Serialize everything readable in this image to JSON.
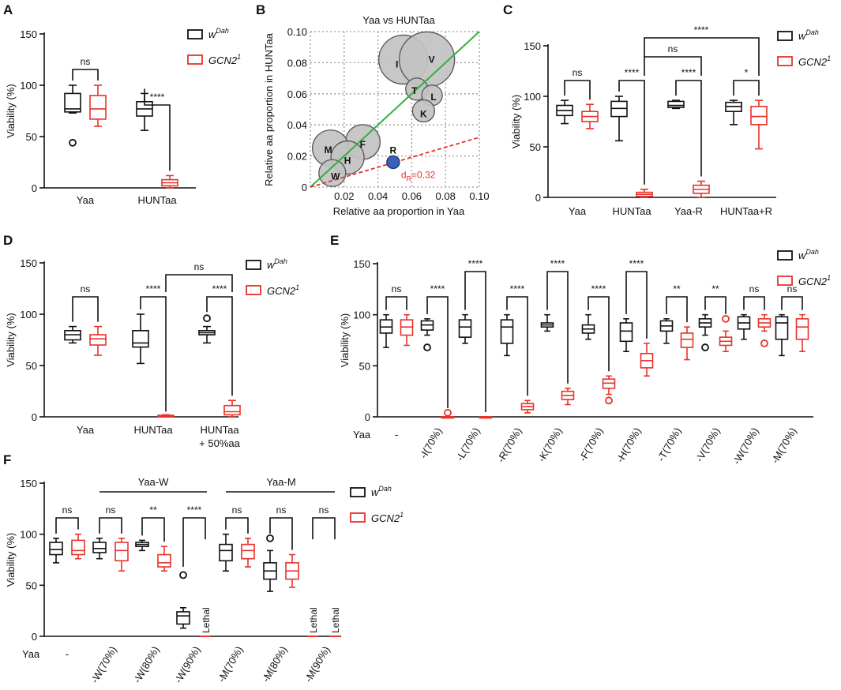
{
  "colors": {
    "wdah": "#111111",
    "gcn2": "#e8322a",
    "bubble_fill": "#c2c2c2",
    "bubble_stroke": "#555555",
    "diag_line": "#35b03b",
    "fit_line": "#e8322a",
    "R_fill": "#3a63b8"
  },
  "legend": {
    "wdah_main": "w",
    "wdah_sup": "Dah",
    "gcn2_main": "GCN2",
    "gcn2_sup": "1"
  },
  "panelA": {
    "letter": "A",
    "chart_data": {
      "type": "box",
      "ylabel": "Viability (%)",
      "ylim": [
        0,
        150
      ],
      "yticks": [
        "0",
        "50",
        "100",
        "150"
      ],
      "categories": [
        "Yaa",
        "HUNTaa"
      ],
      "groups": [
        {
          "label": "Yaa",
          "boxes": [
            {
              "series": "wDah",
              "min": 73,
              "q1": 74,
              "median": 77,
              "q3": 92,
              "max": 100,
              "outliers": [
                44
              ]
            },
            {
              "series": "GCN21",
              "min": 60,
              "q1": 67,
              "median": 77,
              "q3": 90,
              "max": 100,
              "outliers": []
            }
          ]
        },
        {
          "label": "HUNTaa",
          "boxes": [
            {
              "series": "wDah",
              "min": 56,
              "q1": 70,
              "median": 77,
              "q3": 84,
              "max": 92,
              "outliers": []
            },
            {
              "series": "GCN21",
              "min": 0,
              "q1": 2,
              "median": 5,
              "q3": 8,
              "max": 12,
              "outliers": []
            }
          ]
        }
      ],
      "brackets": [
        {
          "text": "ns"
        },
        {
          "text": "****"
        }
      ]
    }
  },
  "panelB": {
    "letter": "B",
    "chart_data": {
      "type": "scatter",
      "title": "Yaa vs HUNTaa",
      "xlabel": "Relative aa proportion in Yaa",
      "ylabel": "Relative aa proportion in HUNTaa",
      "xlim": [
        0,
        0.1
      ],
      "ylim": [
        0,
        0.1
      ],
      "xticks": [
        "0.02",
        "0.04",
        "0.06",
        "0.08",
        "0.10"
      ],
      "yticks": [
        "0",
        "0.02",
        "0.04",
        "0.06",
        "0.08",
        "0.10"
      ],
      "points": [
        {
          "label": "I",
          "x": 0.055,
          "y": 0.082
        },
        {
          "label": "V",
          "x": 0.069,
          "y": 0.082
        },
        {
          "label": "T",
          "x": 0.063,
          "y": 0.063
        },
        {
          "label": "L",
          "x": 0.072,
          "y": 0.059
        },
        {
          "label": "K",
          "x": 0.067,
          "y": 0.049
        },
        {
          "label": "F",
          "x": 0.031,
          "y": 0.029
        },
        {
          "label": "M",
          "x": 0.012,
          "y": 0.025
        },
        {
          "label": "H",
          "x": 0.022,
          "y": 0.019
        },
        {
          "label": "W",
          "x": 0.013,
          "y": 0.009
        },
        {
          "label": "R",
          "x": 0.049,
          "y": 0.016
        }
      ],
      "annotation_main": "d",
      "annotation_sub": "R",
      "annotation_value": "=0.32"
    }
  },
  "panelC": {
    "letter": "C",
    "chart_data": {
      "type": "box",
      "ylabel": "Viability (%)",
      "ylim": [
        0,
        150
      ],
      "yticks": [
        "0",
        "50",
        "100",
        "150"
      ],
      "categories": [
        "Yaa",
        "HUNTaa",
        "Yaa-R",
        "HUNTaa+R"
      ],
      "groups": [
        {
          "label": "Yaa",
          "boxes": [
            {
              "series": "wDah",
              "min": 73,
              "q1": 81,
              "median": 86,
              "q3": 91,
              "max": 96,
              "outliers": []
            },
            {
              "series": "GCN21",
              "min": 68,
              "q1": 75,
              "median": 80,
              "q3": 85,
              "max": 92,
              "outliers": []
            }
          ]
        },
        {
          "label": "HUNTaa",
          "boxes": [
            {
              "series": "wDah",
              "min": 56,
              "q1": 80,
              "median": 88,
              "q3": 95,
              "max": 100,
              "outliers": []
            },
            {
              "series": "GCN21",
              "min": 0,
              "q1": 1,
              "median": 3,
              "q3": 5,
              "max": 8,
              "outliers": []
            }
          ]
        },
        {
          "label": "Yaa-R",
          "boxes": [
            {
              "series": "wDah",
              "min": 88,
              "q1": 89,
              "median": 91,
              "q3": 95,
              "max": 96,
              "outliers": []
            },
            {
              "series": "GCN21",
              "min": 0,
              "q1": 4,
              "median": 8,
              "q3": 12,
              "max": 16,
              "outliers": []
            }
          ]
        },
        {
          "label": "HUNTaa+R",
          "boxes": [
            {
              "series": "wDah",
              "min": 72,
              "q1": 85,
              "median": 90,
              "q3": 94,
              "max": 96,
              "outliers": []
            },
            {
              "series": "GCN21",
              "min": 48,
              "q1": 72,
              "median": 80,
              "q3": 90,
              "max": 96,
              "outliers": []
            }
          ]
        }
      ],
      "brackets": [
        {
          "text": "ns"
        },
        {
          "text": "****"
        },
        {
          "text": "****"
        },
        {
          "text": "*"
        },
        {
          "text": "ns"
        },
        {
          "text": "****"
        }
      ]
    }
  },
  "panelD": {
    "letter": "D",
    "chart_data": {
      "type": "box",
      "ylabel": "Viability (%)",
      "ylim": [
        0,
        150
      ],
      "yticks": [
        "0",
        "50",
        "100",
        "150"
      ],
      "categories": [
        "Yaa",
        "HUNTaa",
        "HUNTaa",
        "+ 50%aa"
      ],
      "groups": [
        {
          "label": "Yaa",
          "boxes": [
            {
              "series": "wDah",
              "min": 72,
              "q1": 75,
              "median": 80,
              "q3": 84,
              "max": 88,
              "outliers": []
            },
            {
              "series": "GCN21",
              "min": 60,
              "q1": 70,
              "median": 76,
              "q3": 80,
              "max": 88,
              "outliers": []
            }
          ]
        },
        {
          "label": "HUNTaa",
          "boxes": [
            {
              "series": "wDah",
              "min": 52,
              "q1": 68,
              "median": 72,
              "q3": 84,
              "max": 100,
              "outliers": []
            },
            {
              "series": "GCN21",
              "min": 0,
              "q1": 0,
              "median": 0.5,
              "q3": 1.5,
              "max": 2,
              "outliers": []
            }
          ]
        },
        {
          "label": "HUNTaa + 50%aa",
          "boxes": [
            {
              "series": "wDah",
              "min": 72,
              "q1": 80,
              "median": 82,
              "q3": 84,
              "max": 88,
              "outliers": [
                96
              ]
            },
            {
              "series": "GCN21",
              "min": 0,
              "q1": 2,
              "median": 5,
              "q3": 11,
              "max": 16,
              "outliers": []
            }
          ]
        }
      ],
      "brackets": [
        {
          "text": "ns"
        },
        {
          "text": "****"
        },
        {
          "text": "****"
        },
        {
          "text": "ns"
        }
      ]
    }
  },
  "panelE": {
    "letter": "E",
    "chart_data": {
      "type": "box",
      "ylabel": "Viability (%)",
      "ylim": [
        0,
        150
      ],
      "yticks": [
        "0",
        "50",
        "100",
        "150"
      ],
      "row_label": "Yaa",
      "categories": [
        "-",
        "-I(70%)",
        "-L(70%)",
        "-R(70%)",
        "-K(70%)",
        "-F(70%)",
        "-H(70%)",
        "-T(70%)",
        "-V(70%)",
        "-W(70%)",
        "-M(70%)"
      ],
      "groups": [
        {
          "label": "-",
          "boxes": [
            {
              "series": "wDah",
              "min": 68,
              "q1": 82,
              "median": 88,
              "q3": 95,
              "max": 100,
              "outliers": []
            },
            {
              "series": "GCN21",
              "min": 70,
              "q1": 80,
              "median": 88,
              "q3": 95,
              "max": 100,
              "outliers": []
            }
          ]
        },
        {
          "label": "-I(70%)",
          "boxes": [
            {
              "series": "wDah",
              "min": 80,
              "q1": 85,
              "median": 90,
              "q3": 94,
              "max": 96,
              "outliers": [
                68
              ]
            },
            {
              "series": "GCN21",
              "min": 0,
              "q1": 0,
              "median": 0,
              "q3": 0,
              "max": 0,
              "outliers": [
                4
              ]
            }
          ]
        },
        {
          "label": "-L(70%)",
          "boxes": [
            {
              "series": "wDah",
              "min": 72,
              "q1": 78,
              "median": 88,
              "q3": 95,
              "max": 100,
              "outliers": []
            },
            {
              "series": "GCN21",
              "min": 0,
              "q1": 0,
              "median": 0,
              "q3": 0,
              "max": 0,
              "outliers": []
            }
          ]
        },
        {
          "label": "-R(70%)",
          "boxes": [
            {
              "series": "wDah",
              "min": 60,
              "q1": 72,
              "median": 88,
              "q3": 95,
              "max": 100,
              "outliers": []
            },
            {
              "series": "GCN21",
              "min": 4,
              "q1": 7,
              "median": 10,
              "q3": 13,
              "max": 16,
              "outliers": []
            }
          ]
        },
        {
          "label": "-K(70%)",
          "boxes": [
            {
              "series": "wDah",
              "min": 84,
              "q1": 88,
              "median": 90,
              "q3": 92,
              "max": 100,
              "outliers": []
            },
            {
              "series": "GCN21",
              "min": 12,
              "q1": 17,
              "median": 21,
              "q3": 25,
              "max": 28,
              "outliers": []
            }
          ]
        },
        {
          "label": "-F(70%)",
          "boxes": [
            {
              "series": "wDah",
              "min": 76,
              "q1": 82,
              "median": 86,
              "q3": 90,
              "max": 100,
              "outliers": []
            },
            {
              "series": "GCN21",
              "min": 22,
              "q1": 28,
              "median": 33,
              "q3": 37,
              "max": 40,
              "outliers": [
                16
              ]
            }
          ]
        },
        {
          "label": "-H(70%)",
          "boxes": [
            {
              "series": "wDah",
              "min": 64,
              "q1": 74,
              "median": 84,
              "q3": 92,
              "max": 96,
              "outliers": []
            },
            {
              "series": "GCN21",
              "min": 40,
              "q1": 48,
              "median": 55,
              "q3": 62,
              "max": 72,
              "outliers": []
            }
          ]
        },
        {
          "label": "-T(70%)",
          "boxes": [
            {
              "series": "wDah",
              "min": 72,
              "q1": 84,
              "median": 89,
              "q3": 94,
              "max": 96,
              "outliers": []
            },
            {
              "series": "GCN21",
              "min": 56,
              "q1": 68,
              "median": 76,
              "q3": 82,
              "max": 88,
              "outliers": []
            }
          ]
        },
        {
          "label": "-V(70%)",
          "boxes": [
            {
              "series": "wDah",
              "min": 80,
              "q1": 88,
              "median": 92,
              "q3": 96,
              "max": 100,
              "outliers": [
                68
              ]
            },
            {
              "series": "GCN21",
              "min": 64,
              "q1": 70,
              "median": 74,
              "q3": 78,
              "max": 84,
              "outliers": [
                96
              ]
            }
          ]
        },
        {
          "label": "-W(70%)",
          "boxes": [
            {
              "series": "wDah",
              "min": 76,
              "q1": 86,
              "median": 92,
              "q3": 98,
              "max": 100,
              "outliers": []
            },
            {
              "series": "GCN21",
              "min": 84,
              "q1": 88,
              "median": 92,
              "q3": 96,
              "max": 100,
              "outliers": [
                72
              ]
            }
          ]
        },
        {
          "label": "-M(70%)",
          "boxes": [
            {
              "series": "wDah",
              "min": 60,
              "q1": 76,
              "median": 92,
              "q3": 98,
              "max": 100,
              "outliers": []
            },
            {
              "series": "GCN21",
              "min": 64,
              "q1": 76,
              "median": 88,
              "q3": 96,
              "max": 100,
              "outliers": []
            }
          ]
        }
      ],
      "brackets": [
        {
          "text": "ns"
        },
        {
          "text": "****"
        },
        {
          "text": "****"
        },
        {
          "text": "****"
        },
        {
          "text": "****"
        },
        {
          "text": "****"
        },
        {
          "text": "****"
        },
        {
          "text": "**"
        },
        {
          "text": "**"
        },
        {
          "text": "ns"
        },
        {
          "text": "ns"
        }
      ]
    }
  },
  "panelF": {
    "letter": "F",
    "chart_data": {
      "type": "box",
      "ylabel": "Viability (%)",
      "ylim": [
        0,
        150
      ],
      "yticks": [
        "0",
        "50",
        "100",
        "150"
      ],
      "row_label": "Yaa",
      "group_headers": [
        "Yaa-W",
        "Yaa-M"
      ],
      "lethal_label": "Lethal",
      "categories": [
        "-",
        "-W(70%)",
        "-W(80%)",
        "-W(90%)",
        "-M(70%)",
        "-M(80%)",
        "-M(90%)"
      ],
      "groups": [
        {
          "label": "-",
          "boxes": [
            {
              "series": "wDah",
              "min": 72,
              "q1": 80,
              "median": 85,
              "q3": 92,
              "max": 96,
              "outliers": []
            },
            {
              "series": "GCN21",
              "min": 76,
              "q1": 80,
              "median": 84,
              "q3": 94,
              "max": 100,
              "outliers": []
            }
          ]
        },
        {
          "label": "-W(70%)",
          "boxes": [
            {
              "series": "wDah",
              "min": 76,
              "q1": 82,
              "median": 86,
              "q3": 92,
              "max": 96,
              "outliers": []
            },
            {
              "series": "GCN21",
              "min": 64,
              "q1": 74,
              "median": 84,
              "q3": 92,
              "max": 96,
              "outliers": []
            }
          ]
        },
        {
          "label": "-W(80%)",
          "boxes": [
            {
              "series": "wDah",
              "min": 84,
              "q1": 88,
              "median": 90,
              "q3": 92,
              "max": 94,
              "outliers": []
            },
            {
              "series": "GCN21",
              "min": 64,
              "q1": 68,
              "median": 72,
              "q3": 80,
              "max": 88,
              "outliers": []
            }
          ]
        },
        {
          "label": "-W(90%)",
          "boxes": [
            {
              "series": "wDah",
              "min": 8,
              "q1": 12,
              "median": 20,
              "q3": 24,
              "max": 28,
              "outliers": [
                60
              ]
            },
            {
              "series": "GCN21",
              "lethal": true
            }
          ]
        },
        {
          "label": "-M(70%)",
          "boxes": [
            {
              "series": "wDah",
              "min": 64,
              "q1": 74,
              "median": 84,
              "q3": 90,
              "max": 100,
              "outliers": []
            },
            {
              "series": "GCN21",
              "min": 68,
              "q1": 76,
              "median": 84,
              "q3": 90,
              "max": 96,
              "outliers": []
            }
          ]
        },
        {
          "label": "-M(80%)",
          "boxes": [
            {
              "series": "wDah",
              "min": 44,
              "q1": 56,
              "median": 64,
              "q3": 72,
              "max": 84,
              "outliers": [
                96
              ]
            },
            {
              "series": "GCN21",
              "min": 48,
              "q1": 56,
              "median": 64,
              "q3": 72,
              "max": 80,
              "outliers": []
            }
          ]
        },
        {
          "label": "-M(90%)",
          "boxes": [
            {
              "series": "wDah",
              "lethal": true
            },
            {
              "series": "GCN21",
              "lethal": true
            }
          ]
        }
      ],
      "brackets": [
        {
          "text": "ns"
        },
        {
          "text": "ns"
        },
        {
          "text": "**"
        },
        {
          "text": "****"
        },
        {
          "text": "ns"
        },
        {
          "text": "ns"
        },
        {
          "text": "ns"
        }
      ]
    }
  }
}
